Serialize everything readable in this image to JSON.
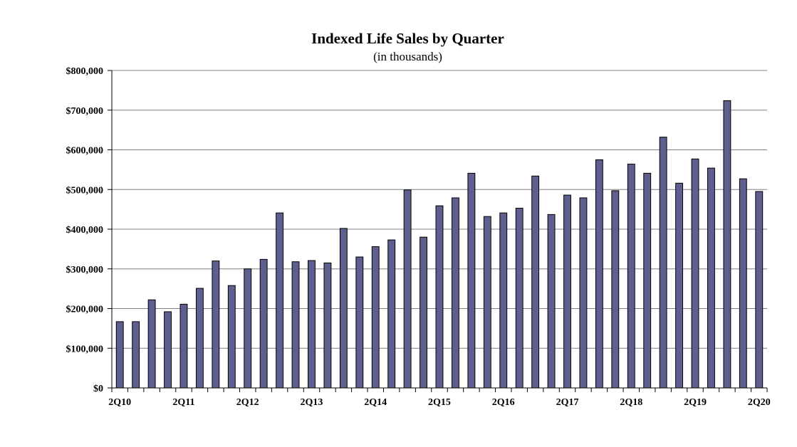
{
  "chart_data": {
    "type": "bar",
    "title": "Indexed Life Sales by Quarter",
    "subtitle": "(in thousands)",
    "xlabel": "",
    "ylabel": "",
    "ylim": [
      0,
      800000
    ],
    "yticks": [
      "$0",
      "$100,000",
      "$200,000",
      "$300,000",
      "$400,000",
      "$500,000",
      "$600,000",
      "$700,000",
      "$800,000"
    ],
    "xtick_labels": [
      "2Q10",
      "2Q11",
      "2Q12",
      "2Q13",
      "2Q14",
      "2Q15",
      "2Q16",
      "2Q17",
      "2Q18",
      "2Q19",
      "2Q20"
    ],
    "categories": [
      "2Q10",
      "3Q10",
      "4Q10",
      "1Q11",
      "2Q11",
      "3Q11",
      "4Q11",
      "1Q12",
      "2Q12",
      "3Q12",
      "4Q12",
      "1Q13",
      "2Q13",
      "3Q13",
      "4Q13",
      "1Q14",
      "2Q14",
      "3Q14",
      "4Q14",
      "1Q15",
      "2Q15",
      "3Q15",
      "4Q15",
      "1Q16",
      "2Q16",
      "3Q16",
      "4Q16",
      "1Q17",
      "2Q17",
      "3Q17",
      "4Q17",
      "1Q18",
      "2Q18",
      "3Q18",
      "4Q18",
      "1Q19",
      "2Q19",
      "3Q19",
      "4Q19",
      "1Q20",
      "2Q20"
    ],
    "values": [
      167000,
      167000,
      222000,
      192000,
      211000,
      251000,
      320000,
      258000,
      300000,
      324000,
      441000,
      318000,
      321000,
      315000,
      402000,
      330000,
      356000,
      373000,
      499000,
      380000,
      459000,
      479000,
      541000,
      432000,
      441000,
      453000,
      534000,
      437000,
      486000,
      479000,
      575000,
      497000,
      564000,
      541000,
      632000,
      516000,
      577000,
      554000,
      724000,
      527000,
      495000
    ],
    "bar_color": "#5f5f8f",
    "grid": true,
    "legend": "none"
  }
}
